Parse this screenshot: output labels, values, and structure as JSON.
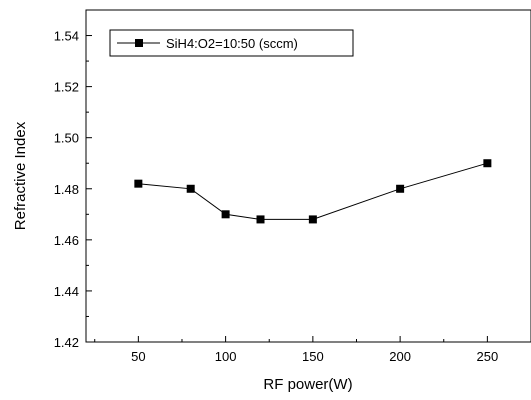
{
  "chart_data": {
    "type": "line",
    "title": "",
    "xlabel": "RF power(W)",
    "ylabel": "Refractive Index",
    "xlim": [
      20,
      275
    ],
    "ylim": [
      1.42,
      1.55
    ],
    "x_ticks": [
      50,
      100,
      150,
      200,
      250
    ],
    "y_ticks": [
      1.42,
      1.44,
      1.46,
      1.48,
      1.5,
      1.52,
      1.54
    ],
    "x_tick_labels": [
      "50",
      "100",
      "150",
      "200",
      "250"
    ],
    "y_tick_labels": [
      "1.42",
      "1.44",
      "1.46",
      "1.48",
      "1.50",
      "1.52",
      "1.54"
    ],
    "grid": false,
    "legend_position": "top-left",
    "series": [
      {
        "name": "SiH4:O2=10:50 (sccm)",
        "marker": "square",
        "color": "#000000",
        "x": [
          50,
          80,
          100,
          120,
          150,
          200,
          250
        ],
        "y": [
          1.482,
          1.48,
          1.47,
          1.468,
          1.468,
          1.48,
          1.49
        ]
      }
    ]
  }
}
